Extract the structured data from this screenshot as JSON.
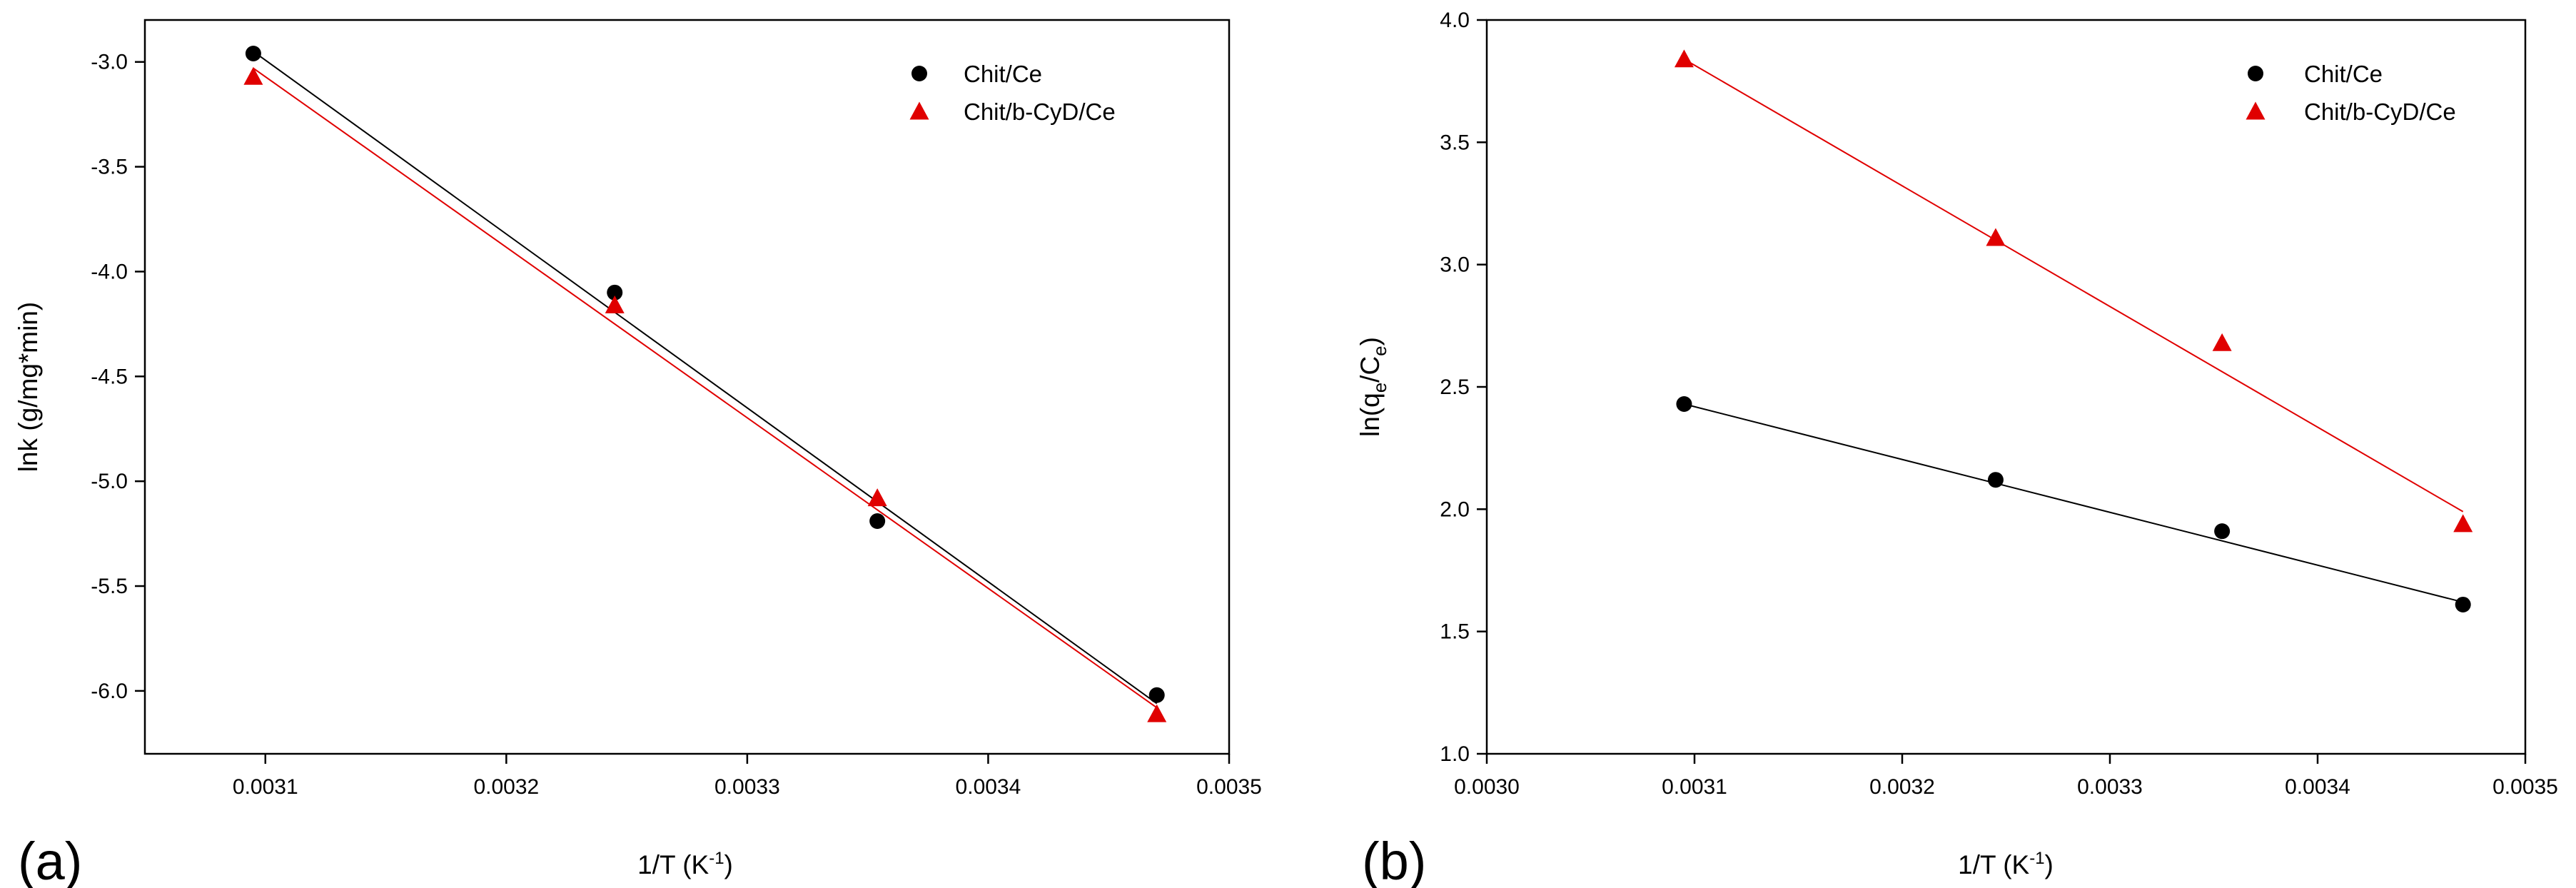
{
  "chart_data": [
    {
      "type": "scatter",
      "panel_label": "(a)",
      "xlabel": "1/T (K",
      "xlabel_sup": "-1",
      "xlabel_end": ")",
      "ylabel": "lnk (g/mg*min)",
      "xlim": [
        0.00305,
        0.0035
      ],
      "ylim": [
        -6.3,
        -2.8
      ],
      "xticks": [
        0.0031,
        0.0032,
        0.0033,
        0.0034,
        0.0035
      ],
      "xtick_labels": [
        "0.0031",
        "0.0032",
        "0.0033",
        "0.0034",
        "0.0035"
      ],
      "yticks": [
        -3.0,
        -3.5,
        -4.0,
        -4.5,
        -5.0,
        -5.5,
        -6.0
      ],
      "ytick_labels": [
        "-3.0",
        "-3.5",
        "-4.0",
        "-4.5",
        "-5.0",
        "-5.5",
        "-6.0"
      ],
      "legend_position": "top-right",
      "series": [
        {
          "name": "Chit/Ce",
          "marker": "circle",
          "color": "#000000",
          "x": [
            0.003095,
            0.003245,
            0.003354,
            0.00347
          ],
          "y": [
            -2.96,
            -4.1,
            -5.19,
            -6.02
          ],
          "fit": [
            [
              0.003095,
              -2.95
            ],
            [
              0.00347,
              -6.06
            ]
          ]
        },
        {
          "name": "Chit/b-CyD/Ce",
          "marker": "triangle",
          "color": "#e00000",
          "x": [
            0.003095,
            0.003245,
            0.003354,
            0.00347
          ],
          "y": [
            -3.07,
            -4.16,
            -5.08,
            -6.11
          ],
          "fit": [
            [
              0.003095,
              -3.03
            ],
            [
              0.00347,
              -6.08
            ]
          ]
        }
      ]
    },
    {
      "type": "scatter",
      "panel_label": "(b)",
      "xlabel": "1/T (K",
      "xlabel_sup": "-1",
      "xlabel_end": ")",
      "ylabel_main": "ln(q",
      "ylabel_sub1": "e",
      "ylabel_mid": "/C",
      "ylabel_sub2": "e",
      "ylabel_end": ")",
      "xlim": [
        0.003,
        0.0035
      ],
      "ylim": [
        1.0,
        4.0
      ],
      "xticks": [
        0.003,
        0.0031,
        0.0032,
        0.0033,
        0.0034,
        0.0035
      ],
      "xtick_labels": [
        "0.0030",
        "0.0031",
        "0.0032",
        "0.0033",
        "0.0034",
        "0.0035"
      ],
      "yticks": [
        1.0,
        1.5,
        2.0,
        2.5,
        3.0,
        3.5,
        4.0
      ],
      "ytick_labels": [
        "1.0",
        "1.5",
        "2.0",
        "2.5",
        "3.0",
        "3.5",
        "4.0"
      ],
      "legend_position": "top-right",
      "series": [
        {
          "name": "Chit/Ce",
          "marker": "circle",
          "color": "#000000",
          "x": [
            0.003095,
            0.003245,
            0.003354,
            0.00347
          ],
          "y": [
            2.43,
            2.12,
            1.91,
            1.61
          ],
          "fit": [
            [
              0.003095,
              2.43
            ],
            [
              0.00347,
              1.62
            ]
          ]
        },
        {
          "name": "Chit/b-CyD/Ce",
          "marker": "triangle",
          "color": "#e00000",
          "x": [
            0.003095,
            0.003245,
            0.003354,
            0.00347
          ],
          "y": [
            3.84,
            3.11,
            2.68,
            1.94
          ],
          "fit": [
            [
              0.003095,
              3.84
            ],
            [
              0.00347,
              1.99
            ]
          ]
        }
      ]
    }
  ]
}
